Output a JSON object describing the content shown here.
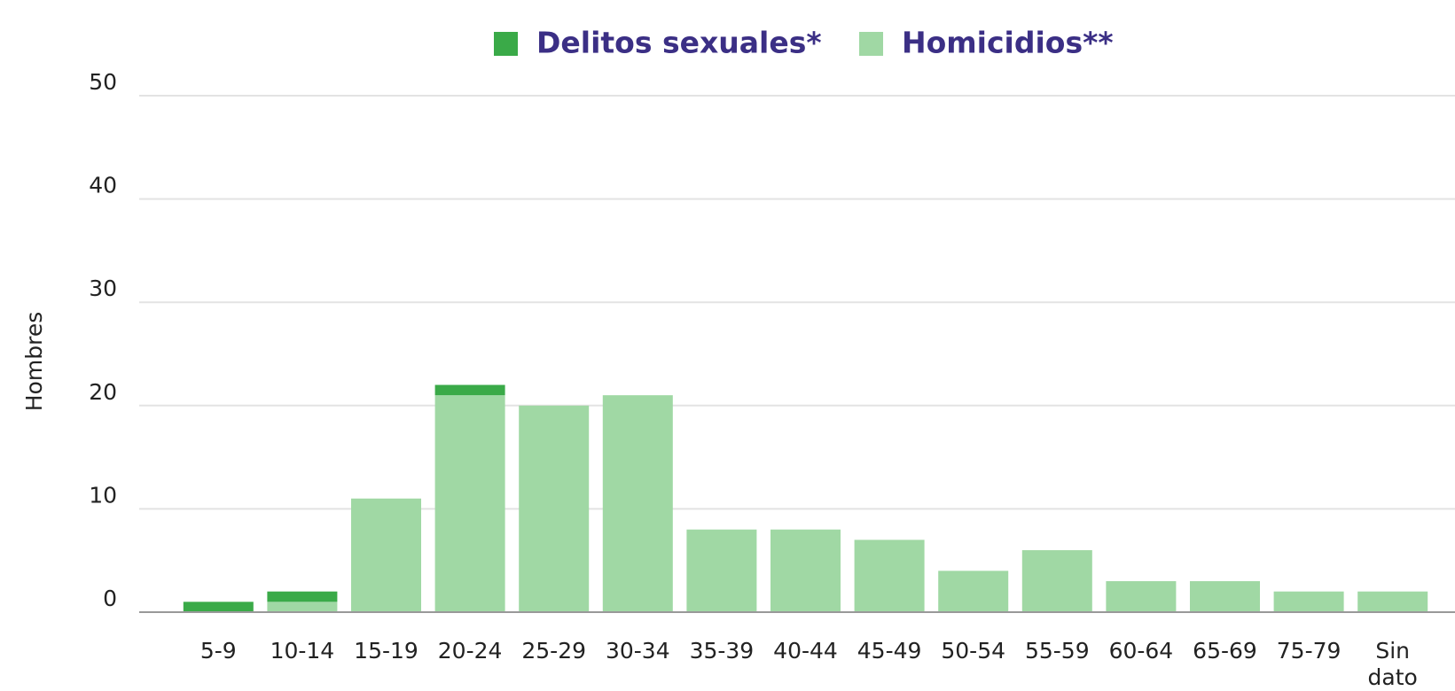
{
  "chart_data": {
    "type": "stacked_bar",
    "y_label": "Hombres",
    "categories": [
      "5-9",
      "10-14",
      "15-19",
      "20-24",
      "25-29",
      "30-34",
      "35-39",
      "40-44",
      "45-49",
      "50-54",
      "55-59",
      "60-64",
      "65-69",
      "75-79",
      "Sin dato"
    ],
    "series": [
      {
        "name": "Delitos sexuales*",
        "color": "#3aaa48",
        "values": [
          1,
          1,
          0,
          1,
          0,
          0,
          0,
          0,
          0,
          0,
          0,
          0,
          0,
          0,
          0
        ]
      },
      {
        "name": "Homicidios**",
        "color": "#a0d8a4",
        "values": [
          0,
          1,
          11,
          21,
          20,
          21,
          8,
          8,
          7,
          4,
          6,
          3,
          3,
          2,
          2
        ]
      }
    ],
    "ylim": [
      0,
      50
    ],
    "yticks": [
      0,
      10,
      20,
      30,
      40,
      50
    ],
    "grid": true,
    "legend": "top"
  }
}
